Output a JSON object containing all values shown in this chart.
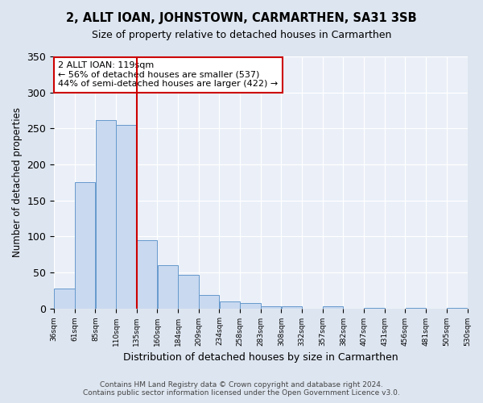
{
  "title": "2, ALLT IOAN, JOHNSTOWN, CARMARTHEN, SA31 3SB",
  "subtitle": "Size of property relative to detached houses in Carmarthen",
  "xlabel": "Distribution of detached houses by size in Carmarthen",
  "ylabel": "Number of detached properties",
  "bar_values": [
    28,
    175,
    262,
    255,
    95,
    60,
    46,
    19,
    10,
    7,
    3,
    3,
    0,
    3,
    0,
    1,
    0,
    1,
    0,
    1
  ],
  "bar_labels": [
    "36sqm",
    "61sqm",
    "85sqm",
    "110sqm",
    "135sqm",
    "160sqm",
    "184sqm",
    "209sqm",
    "234sqm",
    "258sqm",
    "283sqm",
    "308sqm",
    "332sqm",
    "357sqm",
    "382sqm",
    "407sqm",
    "431sqm",
    "456sqm",
    "481sqm",
    "505sqm",
    "530sqm"
  ],
  "bar_color": "#c9d9f0",
  "bar_edge_color": "#6699cc",
  "vline_x_idx": 3,
  "vline_color": "#cc0000",
  "annotation_title": "2 ALLT IOAN: 119sqm",
  "annotation_line1": "← 56% of detached houses are smaller (537)",
  "annotation_line2": "44% of semi-detached houses are larger (422) →",
  "annotation_box_color": "#ffffff",
  "annotation_box_edge": "#cc0000",
  "ylim": [
    0,
    350
  ],
  "yticks": [
    0,
    50,
    100,
    150,
    200,
    250,
    300,
    350
  ],
  "footer_line1": "Contains HM Land Registry data © Crown copyright and database right 2024.",
  "footer_line2": "Contains public sector information licensed under the Open Government Licence v3.0.",
  "bg_color": "#dde5f0",
  "plot_bg_color": "#eaeff8"
}
